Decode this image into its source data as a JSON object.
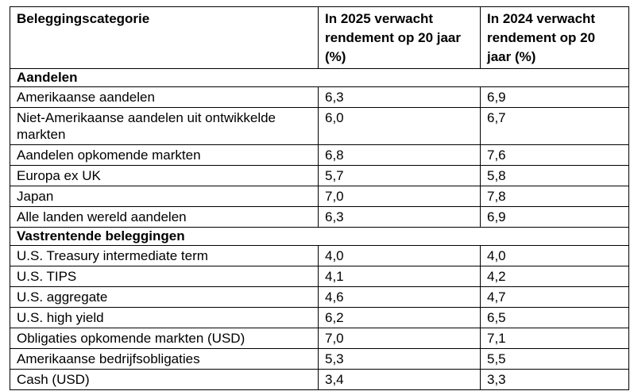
{
  "table": {
    "columns": [
      {
        "label": "Beleggingscategorie"
      },
      {
        "label": "In 2025 verwacht rendement op 20 jaar (%)"
      },
      {
        "label": "In 2024 verwacht rendement op 20 jaar (%)"
      }
    ],
    "sections": [
      {
        "header": "Aandelen",
        "rows": [
          {
            "category": "Amerikaanse aandelen",
            "y2025": "6,3",
            "y2024": "6,9"
          },
          {
            "category": "Niet-Amerikaanse aandelen uit ontwikkelde markten",
            "y2025": "6,0",
            "y2024": "6,7"
          },
          {
            "category": "Aandelen opkomende markten",
            "y2025": "6,8",
            "y2024": "7,6"
          },
          {
            "category": "Europa ex UK",
            "y2025": "5,7",
            "y2024": "5,8"
          },
          {
            "category": "Japan",
            "y2025": "7,0",
            "y2024": "7,8"
          },
          {
            "category": "Alle landen wereld aandelen",
            "y2025": "6,3",
            "y2024": "6,9"
          }
        ]
      },
      {
        "header": "Vastrentende beleggingen",
        "rows": [
          {
            "category": "U.S. Treasury intermediate term",
            "y2025": "4,0",
            "y2024": "4,0"
          },
          {
            "category": "U.S. TIPS",
            "y2025": "4,1",
            "y2024": "4,2"
          },
          {
            "category": "U.S. aggregate",
            "y2025": "4,6",
            "y2024": "4,7"
          },
          {
            "category": "U.S. high yield",
            "y2025": "6,2",
            "y2024": "6,5"
          },
          {
            "category": "Obligaties opkomende markten (USD)",
            "y2025": "7,0",
            "y2024": "7,1"
          },
          {
            "category": "Amerikaanse bedrijfsobligaties",
            "y2025": "5,3",
            "y2024": "5,5"
          },
          {
            "category": "Cash (USD)",
            "y2025": "3,4",
            "y2024": "3,3"
          }
        ]
      }
    ]
  }
}
